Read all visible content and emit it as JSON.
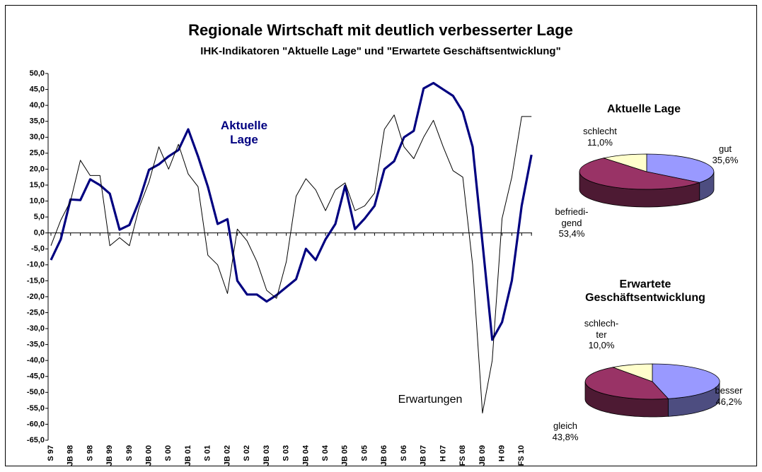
{
  "chart_data": [
    {
      "type": "line",
      "title": "Regionale Wirtschaft mit deutlich verbesserter Lage",
      "subtitle": "IHK-Indikatoren \"Aktuelle Lage\" und \"Erwartete Geschäftsentwicklung\"",
      "categories": [
        "S 97",
        null,
        "JB 98",
        null,
        "S 98",
        null,
        "JB 99",
        null,
        "S 99",
        null,
        "JB 00",
        null,
        "S 00",
        null,
        "JB 01",
        null,
        "S 01",
        null,
        "JB 02",
        null,
        "S 02",
        null,
        "JB 03",
        null,
        "S 03",
        null,
        "JB 04",
        null,
        "S 04",
        null,
        "JB 05",
        null,
        "S 05",
        null,
        "JB 06",
        null,
        "S 06",
        null,
        "JB 07",
        null,
        "H 07",
        null,
        "FS 08",
        null,
        "JB 09",
        null,
        "H 09",
        null,
        "FS 10",
        null
      ],
      "series": [
        {
          "name": "Aktuelle Lage",
          "color": "#000080",
          "values": [
            -8.5,
            -2,
            10.5,
            10.3,
            16.8,
            15,
            12.3,
            1,
            2.5,
            10,
            19.8,
            21.5,
            24,
            26,
            32.5,
            24,
            14.5,
            2.8,
            4.3,
            -15,
            -19.3,
            -19.3,
            -21.5,
            -19.5,
            -17,
            -14.5,
            -5,
            -8.5,
            -2,
            2.8,
            14.8,
            1.2,
            4.5,
            8.5,
            20,
            22.5,
            30,
            32,
            45.3,
            47,
            45,
            43,
            38,
            27,
            -3,
            -33.5,
            -28,
            -15,
            8.5,
            24.5
          ]
        },
        {
          "name": "Erwartungen",
          "color": "#000000",
          "values": [
            -4,
            4,
            10,
            22.8,
            18,
            18,
            -4,
            -1.5,
            -4,
            8,
            16,
            27,
            20,
            27.8,
            18.5,
            14.5,
            -7,
            -10,
            -19,
            1.2,
            -2.5,
            -9,
            -18,
            -20.5,
            -9,
            11.5,
            17,
            13.5,
            7,
            13.5,
            15.7,
            7,
            8.5,
            12.5,
            32.5,
            37,
            27,
            23.3,
            30,
            35.3,
            27,
            19.5,
            17.5,
            -10,
            -56.5,
            -40,
            4.5,
            17.5,
            36.5,
            36.5
          ]
        }
      ],
      "ylim": [
        -65,
        50
      ],
      "yticks": [
        {
          "value": -65,
          "label": "-65,0"
        },
        {
          "value": -60,
          "label": "-60,0"
        },
        {
          "value": -55,
          "label": "-55,0"
        },
        {
          "value": -50,
          "label": "-50,0"
        },
        {
          "value": -45,
          "label": "-45,0"
        },
        {
          "value": -40,
          "label": "-40,0"
        },
        {
          "value": -35,
          "label": "-35,0"
        },
        {
          "value": -30,
          "label": "-30,0"
        },
        {
          "value": -25,
          "label": "-25,0"
        },
        {
          "value": -20,
          "label": "-20,0"
        },
        {
          "value": -15,
          "label": "-15,0"
        },
        {
          "value": -10,
          "label": "-10,0"
        },
        {
          "value": -5,
          "label": "-5,0"
        },
        {
          "value": 0,
          "label": "0,0"
        },
        {
          "value": 5,
          "label": "5,0"
        },
        {
          "value": 10,
          "label": "10,0"
        },
        {
          "value": 15,
          "label": "15,0"
        },
        {
          "value": 20,
          "label": "20,0"
        },
        {
          "value": 25,
          "label": "25,0"
        },
        {
          "value": 30,
          "label": "30,0"
        },
        {
          "value": 35,
          "label": "35,0"
        },
        {
          "value": 40,
          "label": "40,0"
        },
        {
          "value": 45,
          "label": "45,0"
        },
        {
          "value": 50,
          "label": "50,0"
        }
      ],
      "grid": false
    },
    {
      "type": "pie",
      "title": "Aktuelle Lage",
      "categories": [
        "gut",
        "befriedi-\ngend",
        "schlecht"
      ],
      "values": [
        35.6,
        53.4,
        11.0
      ],
      "value_labels": [
        "35,6%",
        "53,4%",
        "11,0%"
      ],
      "colors": [
        "#9999ff",
        "#993366",
        "#ffffcc"
      ]
    },
    {
      "type": "pie",
      "title": "Erwartete Geschäftsentwicklung",
      "categories": [
        "besser",
        "gleich",
        "schlech-\nter"
      ],
      "values": [
        46.2,
        43.8,
        10.0
      ],
      "value_labels": [
        "46,2%",
        "43,8%",
        "10,0%"
      ],
      "colors": [
        "#9999ff",
        "#993366",
        "#ffffcc"
      ]
    }
  ]
}
